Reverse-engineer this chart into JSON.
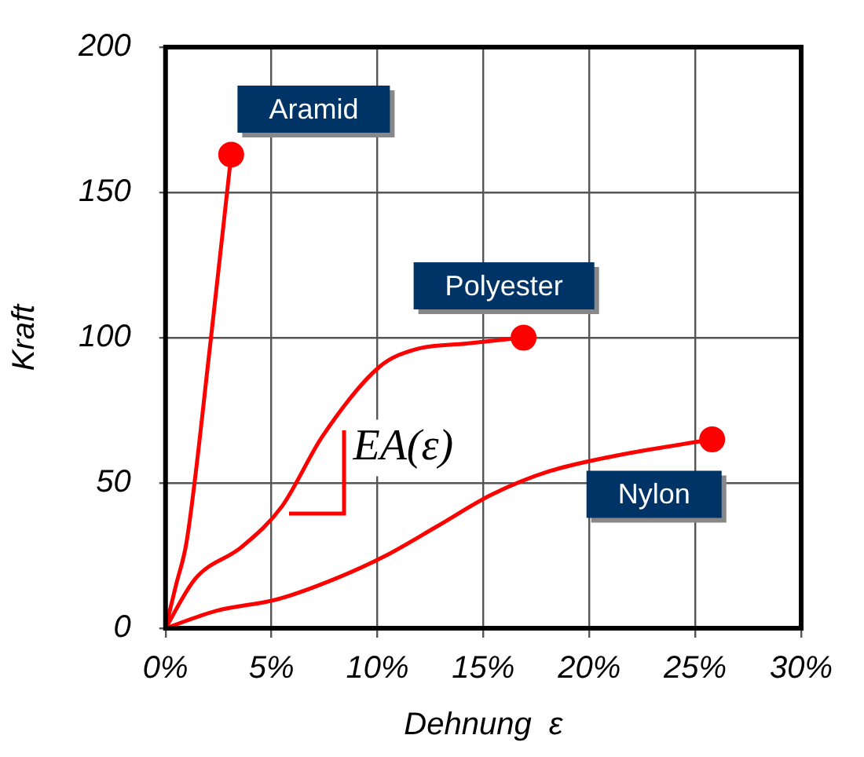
{
  "chart_data": {
    "type": "line",
    "xlabel": "Dehnung  ε",
    "ylabel": "Kraft",
    "xlim": [
      0,
      30
    ],
    "xticks": [
      {
        "value": 0,
        "label": "0%"
      },
      {
        "value": 5,
        "label": "5%"
      },
      {
        "value": 10,
        "label": "10%"
      },
      {
        "value": 15,
        "label": "15%"
      },
      {
        "value": 20,
        "label": "20%"
      },
      {
        "value": 25,
        "label": "25%"
      },
      {
        "value": 30,
        "label": "30%"
      }
    ],
    "ylim": [
      0,
      200
    ],
    "yticks": [
      0,
      50,
      100,
      150,
      200
    ],
    "grid": true,
    "legend": false,
    "line_style": "solid",
    "series": [
      {
        "name": "Aramid",
        "color": "#ff0000",
        "x": [
          0,
          0.5,
          1.0,
          2.1,
          3.1
        ],
        "values": [
          0,
          15,
          30,
          97,
          163
        ]
      },
      {
        "name": "Polyester",
        "color": "#ff0000",
        "x": [
          0,
          1.4,
          3.6,
          5.5,
          7.4,
          10.1,
          11.8,
          14.2,
          16.9
        ],
        "values": [
          0,
          17,
          28,
          42,
          66,
          90,
          96,
          98,
          100
        ]
      },
      {
        "name": "Nylon",
        "color": "#ff0000",
        "x": [
          0,
          2.4,
          5.3,
          8.0,
          10.4,
          12.8,
          15.4,
          18.1,
          21.7,
          25.8
        ],
        "values": [
          0,
          6,
          10,
          17,
          25,
          35,
          46,
          54,
          60,
          65
        ]
      }
    ],
    "annotations": [
      "EA(ε)"
    ]
  }
}
